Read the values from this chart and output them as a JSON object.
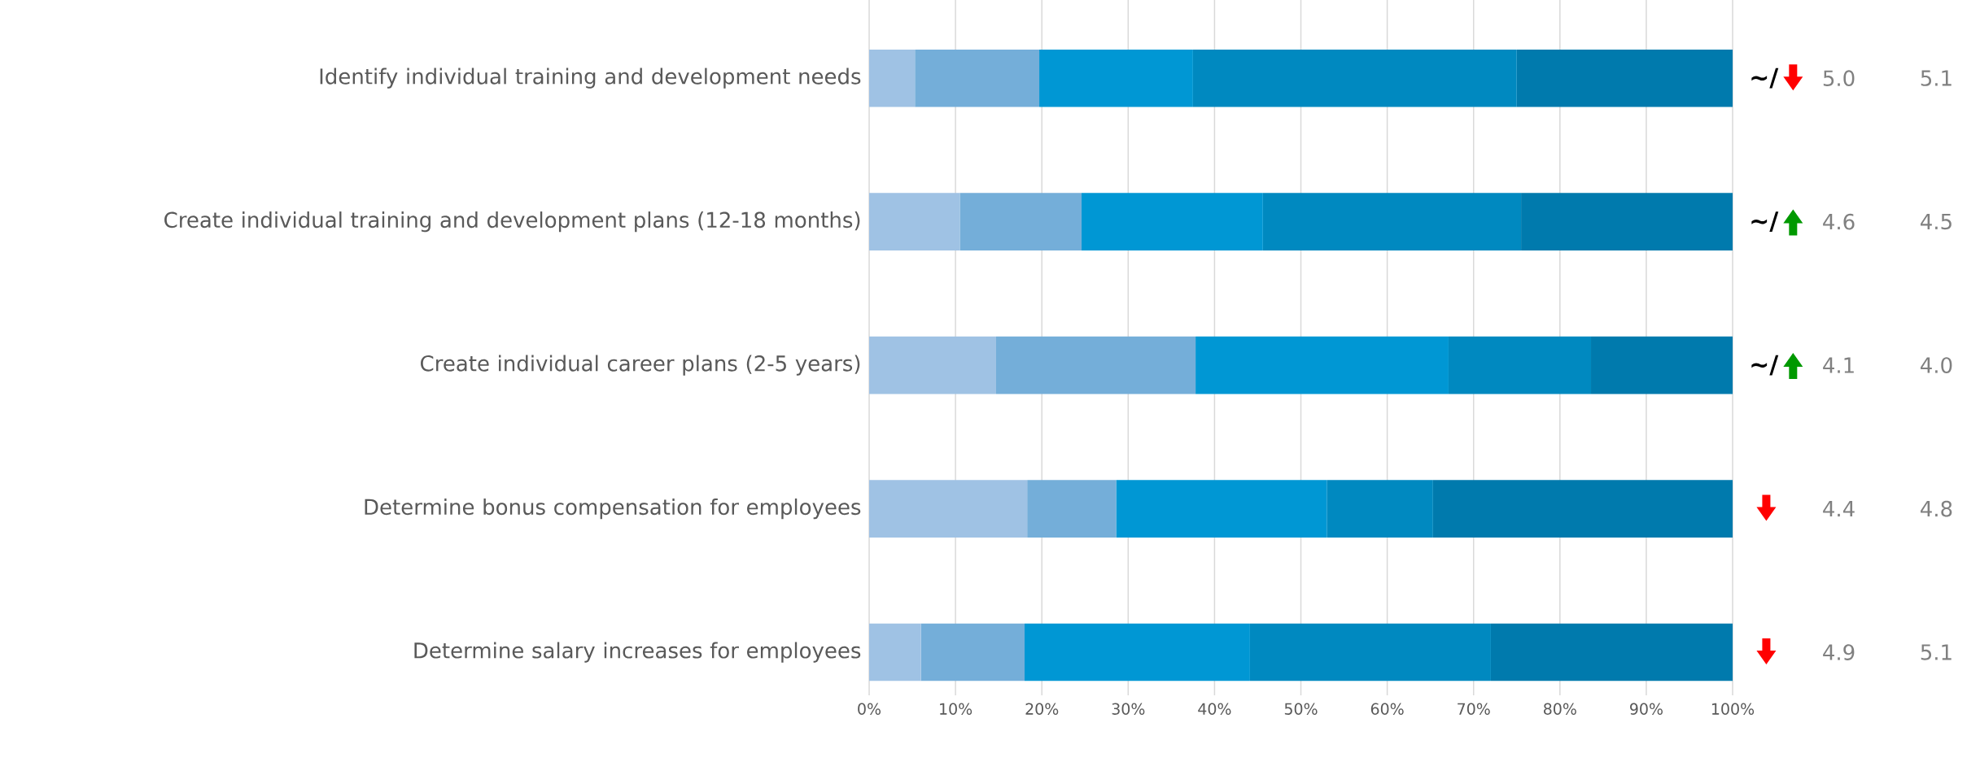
{
  "chart_data": {
    "type": "bar",
    "orientation": "horizontal",
    "stacked": true,
    "categories": [
      "Identify individual training and development needs",
      "Create individual training and development plans (12-18 months)",
      "Create individual career plans (2-5 years)",
      "Determine bonus compensation for employees",
      "Determine salary increases for employees"
    ],
    "series": [
      {
        "color": "#9fc2e4",
        "values": [
          5.3,
          10.5,
          14.7,
          18.3,
          6.0
        ]
      },
      {
        "color": "#74aed9",
        "values": [
          14.4,
          14.1,
          23.1,
          10.3,
          12.0
        ]
      },
      {
        "color": "#0097d4",
        "values": [
          17.8,
          21.0,
          29.3,
          24.4,
          26.1
        ]
      },
      {
        "color": "#0089c0",
        "values": [
          37.5,
          29.9,
          16.5,
          12.3,
          27.9
        ]
      },
      {
        "color": "#007aad",
        "values": [
          25.0,
          24.5,
          16.4,
          34.7,
          28.0
        ]
      }
    ],
    "xlim": [
      0,
      100
    ],
    "xticks": [
      {
        "value": 0,
        "label": "0%"
      },
      {
        "value": 10,
        "label": "10%"
      },
      {
        "value": 20,
        "label": "20%"
      },
      {
        "value": 30,
        "label": "30%"
      },
      {
        "value": 40,
        "label": "40%"
      },
      {
        "value": 50,
        "label": "50%"
      },
      {
        "value": 60,
        "label": "60%"
      },
      {
        "value": 70,
        "label": "70%"
      },
      {
        "value": 80,
        "label": "80%"
      },
      {
        "value": 90,
        "label": "90%"
      },
      {
        "value": 100,
        "label": "100%"
      }
    ],
    "grid": "x",
    "annotations": [
      "~/",
      "5.0",
      "5.1",
      "~/",
      "4.6",
      "4.5",
      "~/",
      "4.1",
      "4.0",
      "4.4",
      "4.8",
      "4.9",
      "5.1"
    ]
  }
}
